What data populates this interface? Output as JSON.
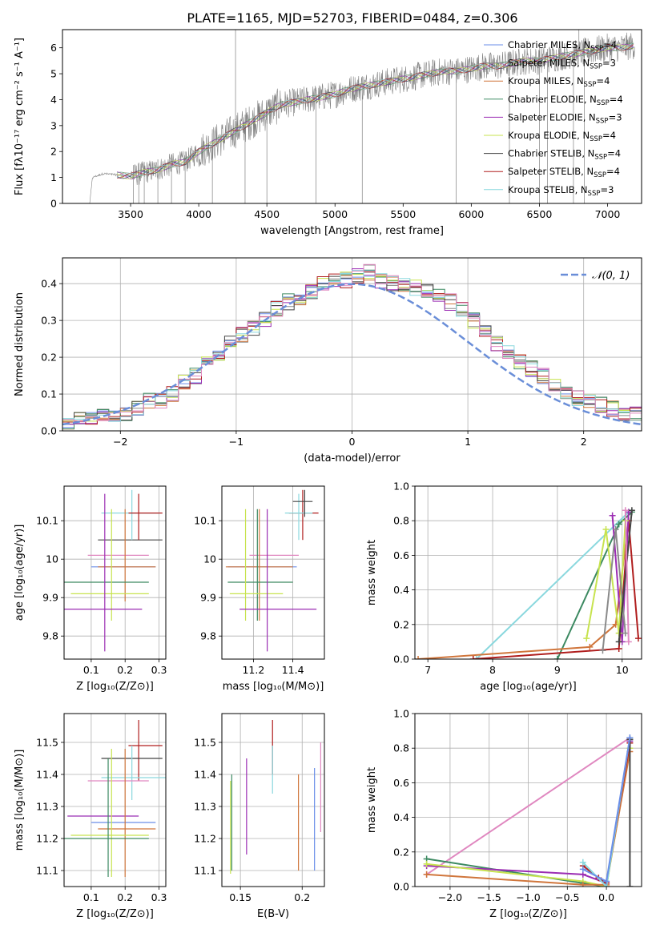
{
  "figure": {
    "title": "PLATE=1165, MJD=52703, FIBERID=0484, z=0.306"
  },
  "chart_data": [
    {
      "id": "spectrum",
      "type": "line",
      "xlabel": "wavelength [Angstrom, rest frame]",
      "ylabel": "Flux [fλ10⁻¹⁷ erg cm⁻² s⁻¹ A⁻¹]",
      "xlim": [
        3000,
        7250
      ],
      "ylim": [
        0,
        6.7
      ],
      "xticks": [
        3500,
        4000,
        4500,
        5000,
        5500,
        6000,
        6500,
        7000
      ],
      "yticks": [
        0,
        1,
        2,
        3,
        4,
        5,
        6
      ],
      "grid": false,
      "legend_position": "top-right",
      "data_curve": {
        "x": [
          3200,
          3220,
          3300,
          3400,
          3500,
          3600,
          3700,
          3800,
          3900,
          4000,
          4100,
          4200,
          4300,
          4400,
          4500,
          4600,
          4700,
          4800,
          4900,
          5000,
          5100,
          5200,
          5300,
          5400,
          5500,
          5600,
          5700,
          5800,
          5900,
          6000,
          6100,
          6200,
          6300,
          6400,
          6500,
          6600,
          6700,
          6800,
          6900,
          7000,
          7100,
          7200
        ],
        "y": [
          0,
          1.0,
          1.15,
          1.1,
          1.05,
          1.2,
          1.3,
          1.5,
          1.6,
          2.0,
          2.3,
          2.6,
          2.9,
          3.2,
          3.5,
          3.8,
          3.9,
          4.0,
          4.1,
          4.2,
          4.4,
          4.5,
          4.6,
          4.7,
          4.8,
          4.9,
          5.0,
          5.1,
          5.1,
          5.2,
          5.3,
          5.3,
          5.4,
          5.5,
          5.5,
          5.6,
          5.7,
          5.8,
          5.9,
          6.0,
          6.0,
          6.1
        ]
      },
      "series": [
        {
          "name": "Chabrier MILES, N",
          "sub": "SSP",
          "suffix": "=4",
          "color": "#6a8ee8"
        },
        {
          "name": "Salpeter MILES, N",
          "sub": "SSP",
          "suffix": "=3",
          "color": "#8a8a8a"
        },
        {
          "name": "Kroupa MILES, N",
          "sub": "SSP",
          "suffix": "=4",
          "color": "#d0763c"
        },
        {
          "name": "Chabrier ELODIE, N",
          "sub": "SSP",
          "suffix": "=4",
          "color": "#3d8a62"
        },
        {
          "name": "Salpeter ELODIE, N",
          "sub": "SSP",
          "suffix": "=3",
          "color": "#9b2db3"
        },
        {
          "name": "Kroupa ELODIE, N",
          "sub": "SSP",
          "suffix": "=4",
          "color": "#c7e34f"
        },
        {
          "name": "Chabrier STELIB, N",
          "sub": "SSP",
          "suffix": "=4",
          "color": "#444444"
        },
        {
          "name": "Salpeter STELIB, N",
          "sub": "SSP",
          "suffix": "=4",
          "color": "#b01e1e"
        },
        {
          "name": "Kroupa STELIB, N",
          "sub": "SSP",
          "suffix": "=3",
          "color": "#8ad8de"
        }
      ]
    },
    {
      "id": "residuals",
      "type": "bar",
      "xlabel": "(data-model)/error",
      "ylabel": "Normed distribution",
      "xlim": [
        -2.5,
        2.5
      ],
      "ylim": [
        0,
        0.47
      ],
      "xticks": [
        -2,
        -1,
        0,
        1,
        2
      ],
      "xtick_labels": [
        "−2",
        "−1",
        "0",
        "1",
        "2"
      ],
      "yticks": [
        0,
        0.1,
        0.2,
        0.3,
        0.4
      ],
      "ytick_labels": [
        "0.0",
        "0.1",
        "0.2",
        "0.3",
        "0.4"
      ],
      "grid": true,
      "legend_position": "top-right",
      "gaussian": {
        "label": "𝒩(0, 1)",
        "mu": 0,
        "sigma": 1,
        "color": "#6a8ed8"
      },
      "hist_bin_width": 0.1,
      "hist_values": [
        0.02,
        0.03,
        0.04,
        0.04,
        0.04,
        0.05,
        0.06,
        0.08,
        0.08,
        0.1,
        0.13,
        0.15,
        0.18,
        0.21,
        0.24,
        0.26,
        0.28,
        0.3,
        0.33,
        0.35,
        0.36,
        0.38,
        0.4,
        0.41,
        0.41,
        0.42,
        0.43,
        0.41,
        0.4,
        0.4,
        0.39,
        0.38,
        0.37,
        0.35,
        0.33,
        0.3,
        0.27,
        0.24,
        0.21,
        0.19,
        0.17,
        0.15,
        0.13,
        0.11,
        0.09,
        0.08,
        0.07,
        0.06,
        0.05,
        0.05
      ],
      "series_colors": [
        "#6a8ee8",
        "#8a8a8a",
        "#d0763c",
        "#3d8a62",
        "#9b2db3",
        "#c7e34f",
        "#444444",
        "#b01e1e",
        "#8ad8de",
        "#e088c0"
      ]
    },
    {
      "id": "age-vs-Z",
      "type": "scatter",
      "xlabel": "Z [log₁₀(Z/Z⊙)]",
      "ylabel": "age  [log₁₀(age/yr)]",
      "xlim": [
        0.02,
        0.32
      ],
      "ylim": [
        9.74,
        10.19
      ],
      "xticks": [
        0.1,
        0.2,
        0.3
      ],
      "yticks": [
        9.8,
        9.9,
        10.0,
        10.1
      ],
      "grid": true,
      "points": [
        {
          "x": 0.2,
          "y": 10.05,
          "xlo": 0.12,
          "xhi": 0.31,
          "ylo": 10.05,
          "yhi": 10.05,
          "color": "#444444"
        },
        {
          "x": 0.22,
          "y": 10.12,
          "xlo": 0.13,
          "xhi": 0.3,
          "ylo": 10.05,
          "yhi": 10.18,
          "color": "#8ad8de"
        },
        {
          "x": 0.24,
          "y": 10.12,
          "xlo": 0.21,
          "xhi": 0.31,
          "ylo": 10.05,
          "yhi": 10.17,
          "color": "#b01e1e"
        },
        {
          "x": 0.19,
          "y": 10.01,
          "xlo": 0.09,
          "xhi": 0.27,
          "ylo": 10.01,
          "yhi": 10.01,
          "color": "#e088c0"
        },
        {
          "x": 0.2,
          "y": 9.98,
          "xlo": 0.1,
          "xhi": 0.29,
          "ylo": 9.98,
          "yhi": 9.98,
          "color": "#6a8ee8"
        },
        {
          "x": 0.2,
          "y": 9.98,
          "xlo": 0.12,
          "xhi": 0.29,
          "ylo": 9.89,
          "yhi": 10.13,
          "color": "#d0763c"
        },
        {
          "x": 0.15,
          "y": 9.94,
          "xlo": 0.02,
          "xhi": 0.27,
          "ylo": 9.94,
          "yhi": 9.94,
          "color": "#3d8a62"
        },
        {
          "x": 0.16,
          "y": 9.91,
          "xlo": 0.04,
          "xhi": 0.27,
          "ylo": 9.84,
          "yhi": 10.13,
          "color": "#c7e34f"
        },
        {
          "x": 0.14,
          "y": 9.87,
          "xlo": 0.02,
          "xhi": 0.25,
          "ylo": 9.76,
          "yhi": 10.17,
          "color": "#9b2db3"
        }
      ]
    },
    {
      "id": "age-vs-mass",
      "type": "scatter",
      "xlabel": "mass [log₁₀(M/M⊙)]",
      "ylabel": "",
      "xlim": [
        11.04,
        11.56
      ],
      "ylim": [
        9.74,
        10.19
      ],
      "xticks": [
        11.2,
        11.4
      ],
      "yticks": [
        9.8,
        9.9,
        10.0,
        10.1
      ],
      "grid": true,
      "points": [
        {
          "x": 11.45,
          "y": 10.12,
          "xlo": 11.38,
          "xhi": 11.53,
          "ylo": 10.05,
          "yhi": 10.18,
          "color": "#b01e1e"
        },
        {
          "x": 11.43,
          "y": 10.12,
          "xlo": 11.36,
          "xhi": 11.5,
          "ylo": 10.05,
          "yhi": 10.17,
          "color": "#8ad8de"
        },
        {
          "x": 11.46,
          "y": 10.15,
          "xlo": 11.4,
          "xhi": 11.5,
          "ylo": 10.11,
          "yhi": 10.18,
          "color": "#444444"
        },
        {
          "x": 11.28,
          "y": 10.01,
          "xlo": 11.18,
          "xhi": 11.43,
          "ylo": 10.01,
          "yhi": 10.01,
          "color": "#e088c0"
        },
        {
          "x": 11.25,
          "y": 9.98,
          "xlo": 11.07,
          "xhi": 11.42,
          "ylo": 9.98,
          "yhi": 9.98,
          "color": "#6a8ee8"
        },
        {
          "x": 11.23,
          "y": 9.98,
          "xlo": 11.06,
          "xhi": 11.4,
          "ylo": 9.84,
          "yhi": 10.13,
          "color": "#d0763c"
        },
        {
          "x": 11.22,
          "y": 9.94,
          "xlo": 11.07,
          "xhi": 11.4,
          "ylo": 9.84,
          "yhi": 10.13,
          "color": "#3d8a62"
        },
        {
          "x": 11.16,
          "y": 9.91,
          "xlo": 11.08,
          "xhi": 11.35,
          "ylo": 9.84,
          "yhi": 10.13,
          "color": "#c7e34f"
        },
        {
          "x": 11.27,
          "y": 9.87,
          "xlo": 11.13,
          "xhi": 11.52,
          "ylo": 9.76,
          "yhi": 10.13,
          "color": "#9b2db3"
        }
      ]
    },
    {
      "id": "mass-weight-vs-age",
      "type": "line",
      "xlabel": "age  [log₁₀(age/yr)]",
      "ylabel": "mass weight",
      "xlim": [
        6.8,
        10.3
      ],
      "ylim": [
        0,
        1.0
      ],
      "xticks": [
        7,
        8,
        9,
        10
      ],
      "yticks": [
        0,
        0.2,
        0.4,
        0.6,
        0.8,
        1.0
      ],
      "ytick_labels": [
        "0.0",
        "0.2",
        "0.4",
        "0.6",
        "0.8",
        "1.0"
      ],
      "grid": true,
      "series": [
        {
          "color": "#8ad8de",
          "x": [
            7.75,
            10.1
          ],
          "y": [
            0.0,
            0.85
          ]
        },
        {
          "color": "#3d8a62",
          "x": [
            9.0,
            9.95,
            10.15
          ],
          "y": [
            0.0,
            0.78,
            0.85
          ]
        },
        {
          "color": "#d0763c",
          "x": [
            6.85,
            9.5,
            9.9,
            10.1
          ],
          "y": [
            0.0,
            0.07,
            0.2,
            0.8
          ]
        },
        {
          "color": "#b01e1e",
          "x": [
            7.7,
            9.95,
            10.1,
            10.25
          ],
          "y": [
            0.0,
            0.06,
            0.8,
            0.12
          ]
        },
        {
          "color": "#9b2db3",
          "x": [
            9.85,
            10.0,
            10.1
          ],
          "y": [
            0.83,
            0.1,
            0.85
          ]
        },
        {
          "color": "#c7e34f",
          "x": [
            9.45,
            9.75,
            9.95,
            10.05
          ],
          "y": [
            0.12,
            0.75,
            0.15,
            0.8
          ]
        },
        {
          "color": "#8a8a8a",
          "x": [
            9.7,
            9.9,
            10.05
          ],
          "y": [
            0.05,
            0.75,
            0.15
          ]
        },
        {
          "color": "#444444",
          "x": [
            9.95,
            10.15
          ],
          "y": [
            0.1,
            0.86
          ]
        },
        {
          "color": "#e088c0",
          "x": [
            10.05,
            10.1
          ],
          "y": [
            0.86,
            0.1
          ]
        }
      ]
    },
    {
      "id": "mass-vs-Z",
      "type": "scatter",
      "xlabel": "Z [log₁₀(Z/Z⊙)]",
      "ylabel": "mass [log₁₀(M/M⊙)]",
      "xlim": [
        0.02,
        0.32
      ],
      "ylim": [
        11.05,
        11.59
      ],
      "xticks": [
        0.1,
        0.2,
        0.3
      ],
      "yticks": [
        11.1,
        11.2,
        11.3,
        11.4,
        11.5
      ],
      "grid": true,
      "points": [
        {
          "x": 0.24,
          "y": 11.49,
          "xlo": 0.21,
          "xhi": 0.31,
          "ylo": 11.38,
          "yhi": 11.57,
          "color": "#b01e1e"
        },
        {
          "x": 0.22,
          "y": 11.45,
          "xlo": 0.13,
          "xhi": 0.31,
          "ylo": 11.45,
          "yhi": 11.45,
          "color": "#444444"
        },
        {
          "x": 0.22,
          "y": 11.39,
          "xlo": 0.13,
          "xhi": 0.32,
          "ylo": 11.32,
          "yhi": 11.49,
          "color": "#8ad8de"
        },
        {
          "x": 0.19,
          "y": 11.38,
          "xlo": 0.09,
          "xhi": 0.27,
          "ylo": 11.38,
          "yhi": 11.38,
          "color": "#e088c0"
        },
        {
          "x": 0.14,
          "y": 11.27,
          "xlo": 0.03,
          "xhi": 0.24,
          "ylo": 11.27,
          "yhi": 11.27,
          "color": "#9b2db3"
        },
        {
          "x": 0.2,
          "y": 11.25,
          "xlo": 0.1,
          "xhi": 0.29,
          "ylo": 11.25,
          "yhi": 11.25,
          "color": "#6a8ee8"
        },
        {
          "x": 0.2,
          "y": 11.23,
          "xlo": 0.12,
          "xhi": 0.29,
          "ylo": 11.08,
          "yhi": 11.48,
          "color": "#d0763c"
        },
        {
          "x": 0.16,
          "y": 11.21,
          "xlo": 0.04,
          "xhi": 0.27,
          "ylo": 11.08,
          "yhi": 11.48,
          "color": "#c7e34f"
        },
        {
          "x": 0.15,
          "y": 11.2,
          "xlo": 0.02,
          "xhi": 0.27,
          "ylo": 11.08,
          "yhi": 11.45,
          "color": "#3d8a62"
        }
      ]
    },
    {
      "id": "mass-vs-EBV",
      "type": "scatter",
      "xlabel": "E(B-V)",
      "ylabel": "",
      "xlim": [
        0.135,
        0.218
      ],
      "ylim": [
        11.05,
        11.59
      ],
      "xticks": [
        0.15,
        0.2
      ],
      "yticks": [
        11.1,
        11.2,
        11.3,
        11.4,
        11.5
      ],
      "grid": true,
      "points": [
        {
          "x": 0.142,
          "y": 11.25,
          "ylo": 11.09,
          "yhi": 11.38,
          "color": "#c7e34f"
        },
        {
          "x": 0.143,
          "y": 11.25,
          "ylo": 11.1,
          "yhi": 11.4,
          "color": "#3d8a62"
        },
        {
          "x": 0.155,
          "y": 11.3,
          "ylo": 11.15,
          "yhi": 11.45,
          "color": "#9b2db3"
        },
        {
          "x": 0.176,
          "y": 11.48,
          "ylo": 11.4,
          "yhi": 11.57,
          "color": "#b01e1e"
        },
        {
          "x": 0.176,
          "y": 11.42,
          "ylo": 11.34,
          "yhi": 11.49,
          "color": "#8ad8de"
        },
        {
          "x": 0.197,
          "y": 11.25,
          "ylo": 11.1,
          "yhi": 11.4,
          "color": "#d0763c"
        },
        {
          "x": 0.21,
          "y": 11.25,
          "ylo": 11.1,
          "yhi": 11.42,
          "color": "#6a8ee8"
        },
        {
          "x": 0.215,
          "y": 11.35,
          "ylo": 11.22,
          "yhi": 11.5,
          "color": "#e088c0"
        }
      ]
    },
    {
      "id": "mass-weight-vs-Z",
      "type": "line",
      "xlabel": "Z [log₁₀(Z/Z⊙)]",
      "ylabel": "mass weight",
      "xlim": [
        -2.45,
        0.45
      ],
      "ylim": [
        0,
        1.0
      ],
      "xticks": [
        -2.0,
        -1.5,
        -1.0,
        -0.5,
        0.0
      ],
      "xtick_labels": [
        "−2.0",
        "−1.5",
        "−1.0",
        "−0.5",
        "0.0"
      ],
      "yticks": [
        0,
        0.2,
        0.4,
        0.6,
        0.8,
        1.0
      ],
      "ytick_labels": [
        "0.0",
        "0.2",
        "0.4",
        "0.6",
        "0.8",
        "1.0"
      ],
      "grid": true,
      "series": [
        {
          "color": "#e088c0",
          "x": [
            -2.3,
            0.3
          ],
          "y": [
            0.07,
            0.86
          ]
        },
        {
          "color": "#3d8a62",
          "x": [
            -2.3,
            -0.3,
            0.0,
            0.3
          ],
          "y": [
            0.16,
            0.02,
            0.0,
            0.85
          ]
        },
        {
          "color": "#9b2db3",
          "x": [
            -2.3,
            -0.3,
            0.0,
            0.3
          ],
          "y": [
            0.12,
            0.07,
            0.02,
            0.84
          ]
        },
        {
          "color": "#c7e34f",
          "x": [
            -2.3,
            -0.3,
            0.0,
            0.3
          ],
          "y": [
            0.13,
            0.03,
            0.0,
            0.8
          ]
        },
        {
          "color": "#d0763c",
          "x": [
            -2.3,
            -0.3,
            0.0,
            0.3
          ],
          "y": [
            0.07,
            0.01,
            0.01,
            0.78
          ]
        },
        {
          "color": "#b01e1e",
          "x": [
            -0.3,
            -0.1,
            0.0,
            0.3
          ],
          "y": [
            0.12,
            0.05,
            0.02,
            0.83
          ]
        },
        {
          "color": "#8ad8de",
          "x": [
            -0.3,
            0.0,
            0.3
          ],
          "y": [
            0.14,
            0.0,
            0.86
          ]
        },
        {
          "color": "#444444",
          "x": [
            0.3,
            0.3
          ],
          "y": [
            0.0,
            0.85
          ]
        },
        {
          "color": "#6a8ee8",
          "x": [
            -0.3,
            0.0,
            0.3
          ],
          "y": [
            0.1,
            0.03,
            0.86
          ]
        }
      ]
    }
  ]
}
